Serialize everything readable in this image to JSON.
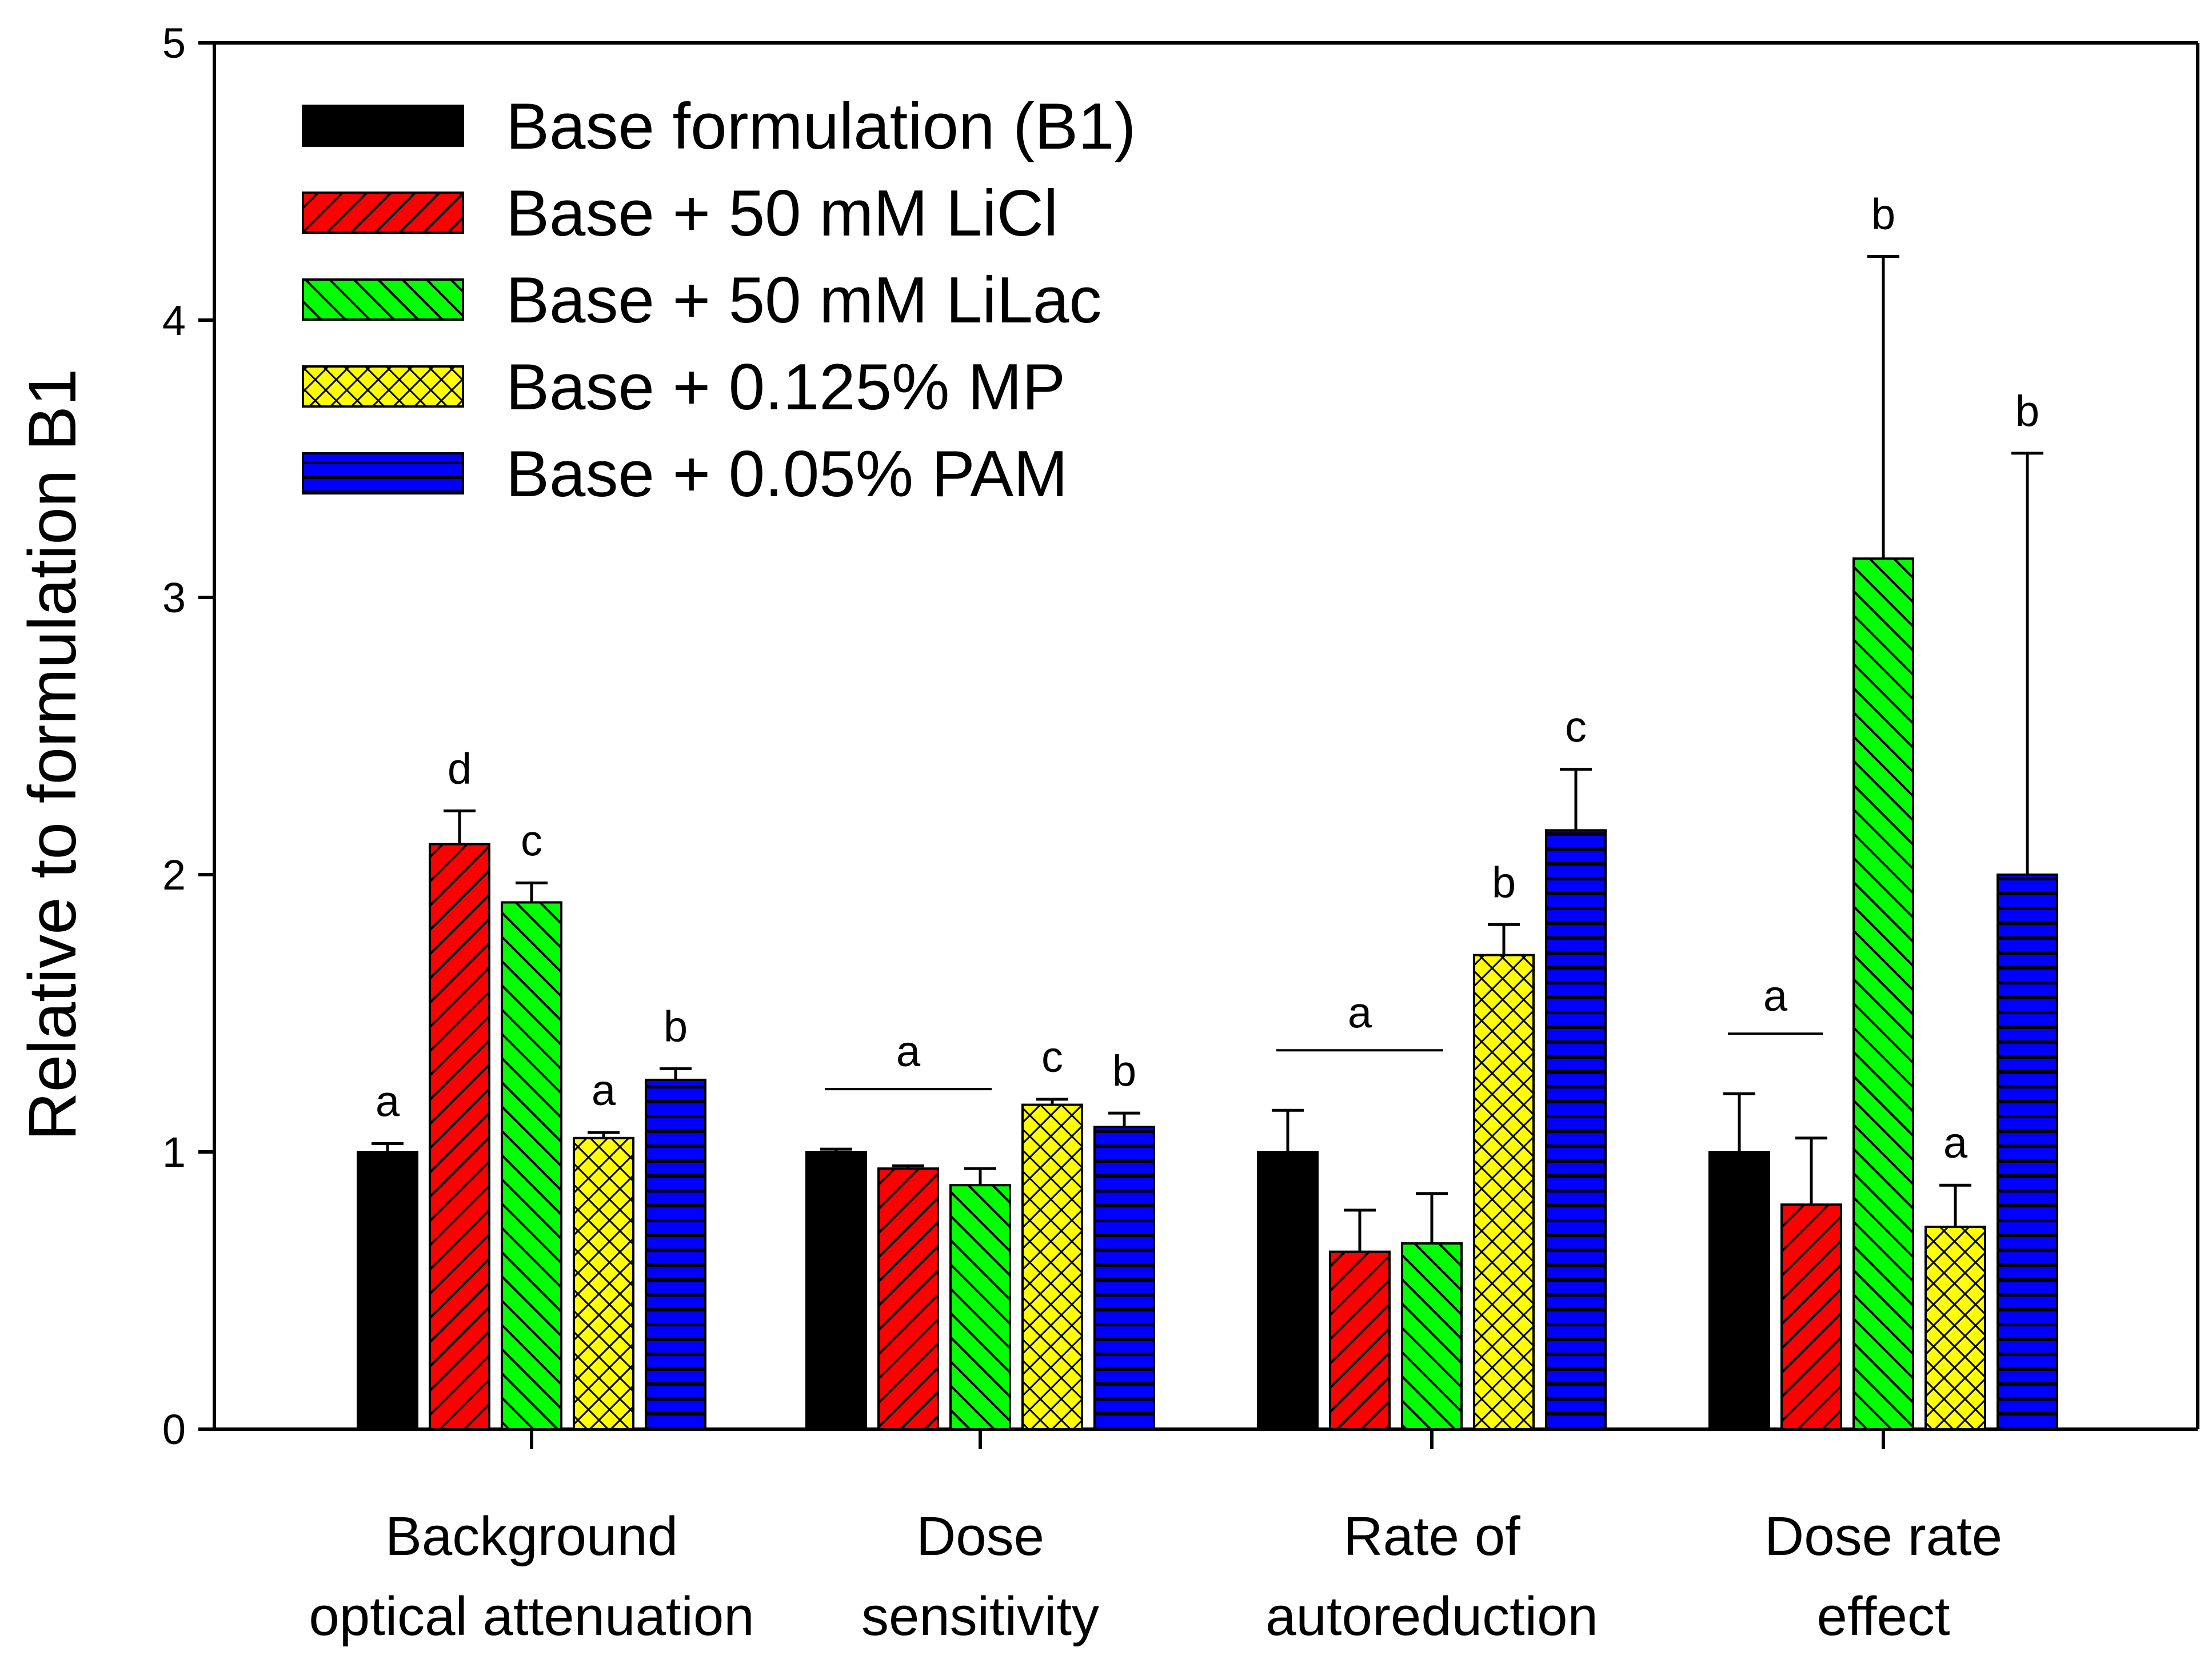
{
  "chart_data": {
    "type": "bar",
    "ylabel": "Relative to formulation B1",
    "ylim": [
      0,
      5
    ],
    "yticks": [
      0,
      1,
      2,
      3,
      4,
      5
    ],
    "categories": [
      [
        "Background",
        "optical attenuation"
      ],
      [
        "Dose",
        "sensitivity"
      ],
      [
        "Rate of",
        "autoreduction"
      ],
      [
        "Dose rate",
        "effect"
      ]
    ],
    "series": [
      {
        "name": "Base formulation (B1)",
        "color": "#000000",
        "pattern": "solid",
        "values": [
          1.0,
          1.0,
          1.0,
          1.0
        ],
        "errors": [
          0.03,
          0.01,
          0.15,
          0.21
        ],
        "sig": [
          "a",
          "",
          "",
          ""
        ]
      },
      {
        "name": "Base + 50 mM LiCl",
        "color": "#ff0000",
        "pattern": "diag-right",
        "values": [
          2.11,
          0.94,
          0.64,
          0.81
        ],
        "errors": [
          0.12,
          0.01,
          0.15,
          0.24
        ],
        "sig": [
          "d",
          "",
          "",
          ""
        ]
      },
      {
        "name": "Base + 50 mM LiLac",
        "color": "#00ff00",
        "pattern": "diag-left",
        "values": [
          1.9,
          0.88,
          0.67,
          3.14
        ],
        "errors": [
          0.07,
          0.06,
          0.18,
          1.09
        ],
        "sig": [
          "c",
          "",
          "",
          "b"
        ]
      },
      {
        "name": "Base + 0.125% MP",
        "color": "#ffff00",
        "pattern": "crosshatch",
        "values": [
          1.05,
          1.17,
          1.71,
          0.73
        ],
        "errors": [
          0.02,
          0.02,
          0.11,
          0.15
        ],
        "sig": [
          "a",
          "c",
          "b",
          "a"
        ]
      },
      {
        "name": "Base + 0.05% PAM",
        "color": "#0000ff",
        "pattern": "horizontal",
        "values": [
          1.26,
          1.09,
          2.16,
          2.0
        ],
        "errors": [
          0.04,
          0.05,
          0.22,
          1.52
        ],
        "sig": [
          "b",
          "b",
          "c",
          "b"
        ]
      }
    ],
    "group_labels": [
      {
        "category": 1,
        "from": 0,
        "to": 2,
        "text": "a"
      },
      {
        "category": 2,
        "from": 0,
        "to": 2,
        "text": "a"
      },
      {
        "category": 3,
        "from": 0,
        "to": 1,
        "text": "a"
      }
    ],
    "legend": "top-left"
  }
}
